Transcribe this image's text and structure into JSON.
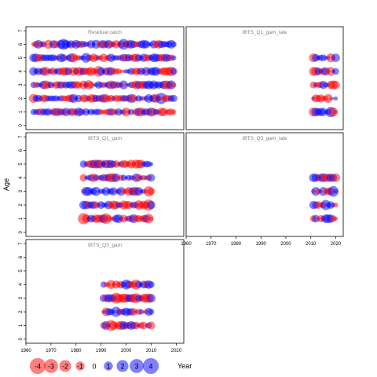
{
  "chart_data": {
    "type": "scatter",
    "style": "bubble",
    "ylabel": "Age",
    "xlabel": "Year",
    "colors": {
      "positive": "#0000ff",
      "negative": "#ff0000"
    },
    "xlim": [
      1960,
      2023
    ],
    "ylim": [
      -0.3,
      7.3
    ],
    "xticks": [
      1960,
      1970,
      1980,
      1990,
      2000,
      2010,
      2020
    ],
    "yticks": [
      0,
      1,
      2,
      3,
      4,
      5,
      6,
      7
    ],
    "legend": {
      "placement": "bottom",
      "values": [
        -4,
        -3,
        -2,
        -1,
        0,
        1,
        2,
        3,
        4
      ],
      "labels": [
        "-4",
        "-3",
        "-2",
        "-1",
        "0",
        "1",
        "2",
        "3",
        "4"
      ]
    },
    "panels": [
      {
        "name": "Residual catch",
        "ages": [
          1,
          2,
          3,
          4,
          5,
          6
        ],
        "year_start": 1963,
        "year_end": 2019
      },
      {
        "name": "IBTS_Q1_gam_late",
        "ages": [
          1,
          2,
          3,
          4,
          5
        ],
        "year_start": 2011,
        "year_end": 2020
      },
      {
        "name": "IBTS_Q1_gam",
        "ages": [
          1,
          2,
          3,
          4,
          5
        ],
        "year_start": 1983,
        "year_end": 2010
      },
      {
        "name": "IBTS_Q3_gam_late",
        "ages": [
          1,
          2,
          3,
          4
        ],
        "year_start": 2011,
        "year_end": 2020
      },
      {
        "name": "IBTS_Q3_gam",
        "ages": [
          1,
          2,
          3,
          4
        ],
        "year_start": 1991,
        "year_end": 2010
      }
    ]
  }
}
